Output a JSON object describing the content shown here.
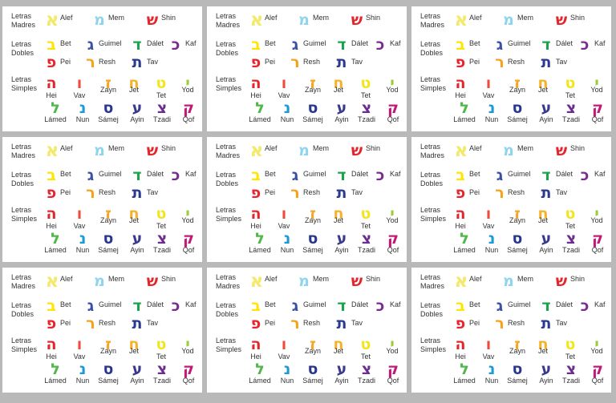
{
  "sections": {
    "madres": "Letras\nMadres",
    "dobles": "Letras\nDobles",
    "simples": "Letras\nSimples"
  },
  "letters": {
    "alef": {
      "glyph": "א",
      "name": "Alef",
      "color": "#f2ea6c"
    },
    "mem": {
      "glyph": "מ",
      "name": "Mem",
      "color": "#8fd4ef"
    },
    "shin": {
      "glyph": "ש",
      "name": "Shin",
      "color": "#e3262b"
    },
    "bet": {
      "glyph": "ב",
      "name": "Bet",
      "color": "#ffe600"
    },
    "guimel": {
      "glyph": "ג",
      "name": "Guimel",
      "color": "#3b4fa3"
    },
    "dalet": {
      "glyph": "ד",
      "name": "Dálet",
      "color": "#19a34a"
    },
    "kaf": {
      "glyph": "כ",
      "name": "Kaf",
      "color": "#7a2b90"
    },
    "pei": {
      "glyph": "פ",
      "name": "Pei",
      "color": "#e8252f"
    },
    "resh": {
      "glyph": "ר",
      "name": "Resh",
      "color": "#f7a21b"
    },
    "tav": {
      "glyph": "ת",
      "name": "Tav",
      "color": "#2a3a8f"
    },
    "hei": {
      "glyph": "ה",
      "name": "Hei",
      "color": "#e3262b"
    },
    "vav": {
      "glyph": "ו",
      "name": "Vav",
      "color": "#ef4a3a"
    },
    "zayn": {
      "glyph": "ז",
      "name": "Zayn",
      "color": "#f5a623"
    },
    "jet": {
      "glyph": "ח",
      "name": "Jet",
      "color": "#f5b12c"
    },
    "tet": {
      "glyph": "ט",
      "name": "Tet",
      "color": "#f2e51a"
    },
    "yod": {
      "glyph": "י",
      "name": "Yod",
      "color": "#9ccb3b"
    },
    "lamed": {
      "glyph": "ל",
      "name": "Lámed",
      "color": "#4fb848"
    },
    "nun": {
      "glyph": "נ",
      "name": "Nun",
      "color": "#1a9ad6"
    },
    "samej": {
      "glyph": "ס",
      "name": "Sámej",
      "color": "#28368e"
    },
    "ayin": {
      "glyph": "ע",
      "name": "Ayin",
      "color": "#3a3a8c"
    },
    "tzadi": {
      "glyph": "צ",
      "name": "Tzadi",
      "color": "#6b2d8f"
    },
    "qof": {
      "glyph": "ק",
      "name": "Qof",
      "color": "#c2187a"
    }
  }
}
